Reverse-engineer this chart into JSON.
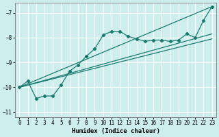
{
  "xlabel": "Humidex (Indice chaleur)",
  "bg_color": "#cdeeed",
  "line_color": "#1a7a6e",
  "grid_color": "#ffffff",
  "xlim": [
    -0.5,
    23.5
  ],
  "ylim": [
    -11.2,
    -6.6
  ],
  "yticks": [
    -11,
    -10,
    -9,
    -8,
    -7
  ],
  "xticks": [
    0,
    1,
    2,
    3,
    4,
    5,
    6,
    7,
    8,
    9,
    10,
    11,
    12,
    13,
    14,
    15,
    16,
    17,
    18,
    19,
    20,
    21,
    22,
    23
  ],
  "line1_x": [
    0,
    1,
    2,
    3,
    4,
    5,
    6,
    7,
    8,
    9,
    10,
    11,
    12,
    13,
    14,
    15,
    16,
    17,
    18,
    19,
    20,
    21,
    22,
    23
  ],
  "line1_y": [
    -10.0,
    -9.75,
    -10.45,
    -10.35,
    -10.35,
    -9.9,
    -9.35,
    -9.1,
    -8.75,
    -8.45,
    -7.9,
    -7.75,
    -7.75,
    -7.95,
    -8.05,
    -8.15,
    -8.1,
    -8.1,
    -8.15,
    -8.1,
    -7.85,
    -8.0,
    -7.3,
    -6.75
  ],
  "line2_x": [
    0,
    23
  ],
  "line2_y": [
    -10.0,
    -6.75
  ],
  "line3_x": [
    0,
    23
  ],
  "line3_y": [
    -10.0,
    -7.85
  ],
  "line4_x": [
    0,
    23
  ],
  "line4_y": [
    -10.0,
    -8.05
  ]
}
